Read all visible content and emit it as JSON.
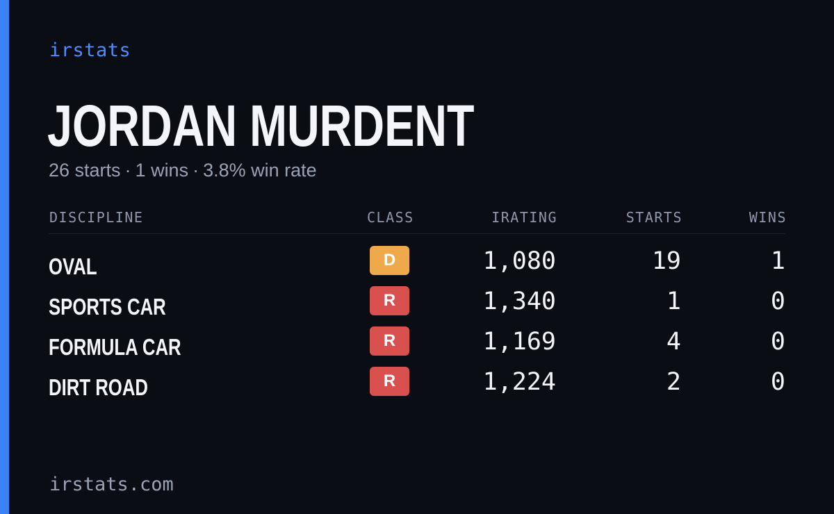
{
  "brand": "irstats",
  "driver": {
    "name": "JORDAN MURDENT",
    "summary": {
      "starts": "26 starts",
      "wins": "1 wins",
      "win_rate": "3.8% win rate",
      "separator": "·"
    }
  },
  "table": {
    "headers": {
      "discipline": "DISCIPLINE",
      "class": "CLASS",
      "irating": "IRATING",
      "starts": "STARTS",
      "wins": "WINS"
    },
    "rows": [
      {
        "discipline": "OVAL",
        "class": "D",
        "class_color": "#eea94a",
        "irating": "1,080",
        "starts": "19",
        "wins": "1"
      },
      {
        "discipline": "SPORTS CAR",
        "class": "R",
        "class_color": "#d9514e",
        "irating": "1,340",
        "starts": "1",
        "wins": "0"
      },
      {
        "discipline": "FORMULA CAR",
        "class": "R",
        "class_color": "#d9514e",
        "irating": "1,169",
        "starts": "4",
        "wins": "0"
      },
      {
        "discipline": "DIRT ROAD",
        "class": "R",
        "class_color": "#d9514e",
        "irating": "1,224",
        "starts": "2",
        "wins": "0"
      }
    ]
  },
  "footer": "irstats.com",
  "colors": {
    "background": "#0b0d14",
    "accent": "#3b82f6"
  }
}
